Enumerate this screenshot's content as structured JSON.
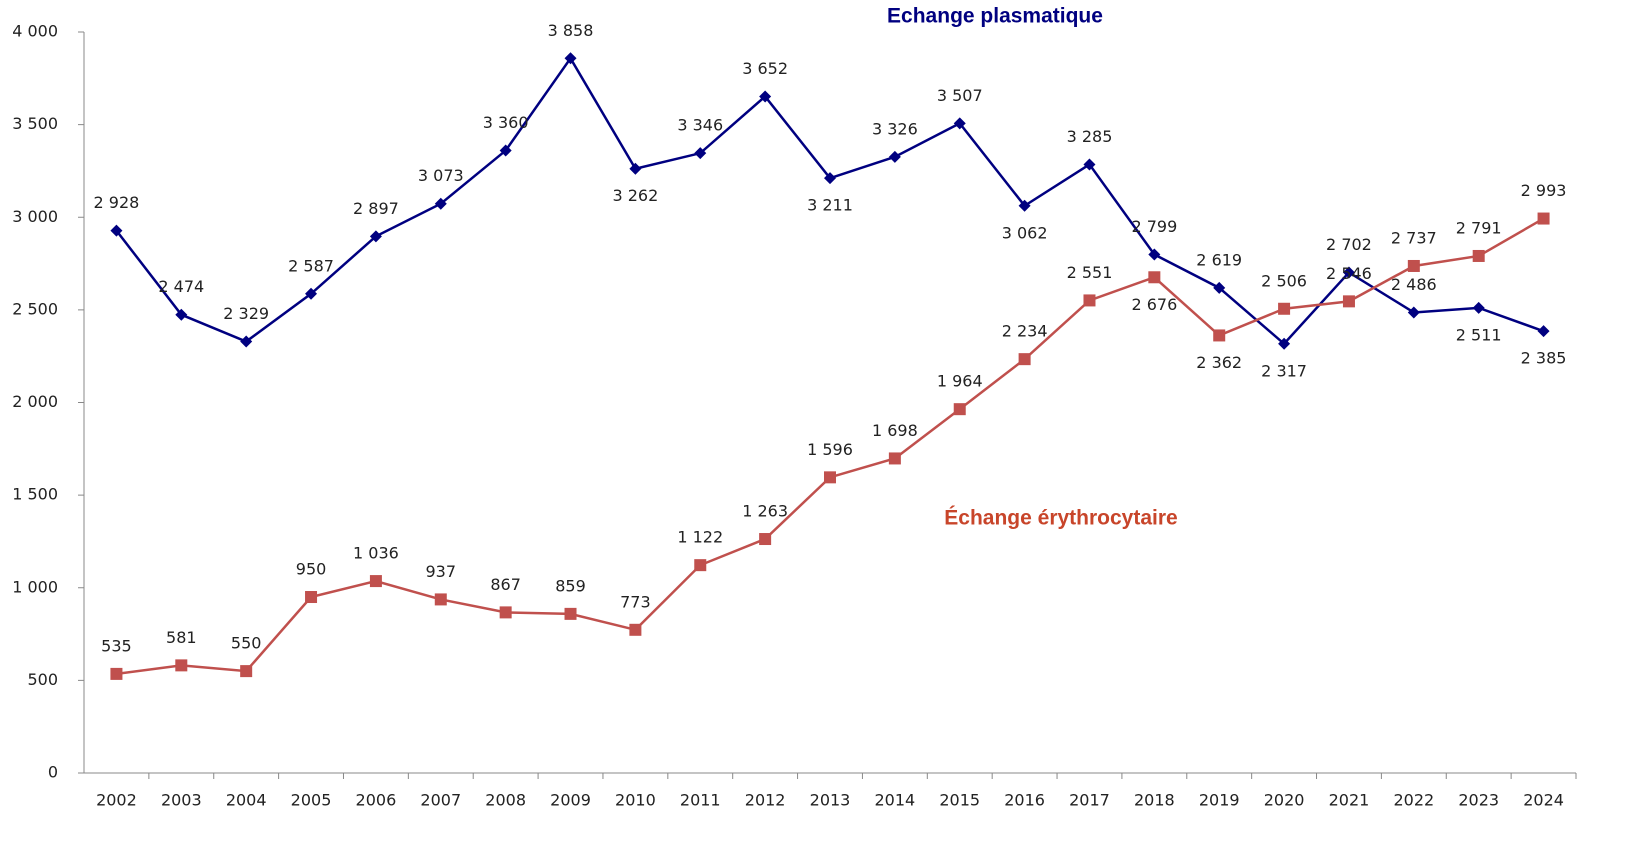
{
  "chart_data": {
    "type": "line",
    "categories": [
      "2002",
      "2003",
      "2004",
      "2005",
      "2006",
      "2007",
      "2008",
      "2009",
      "2010",
      "2011",
      "2012",
      "2013",
      "2014",
      "2015",
      "2016",
      "2017",
      "2018",
      "2019",
      "2020",
      "2021",
      "2022",
      "2023",
      "2024"
    ],
    "series": [
      {
        "name": "Echange plasmatique",
        "color": "#000080",
        "marker": "diamond",
        "values": [
          2928,
          2474,
          2329,
          2587,
          2897,
          3073,
          3360,
          3858,
          3262,
          3346,
          3652,
          3211,
          3326,
          3507,
          3062,
          3285,
          2799,
          2619,
          2317,
          2702,
          2486,
          2511,
          2385
        ],
        "value_labels": [
          "2 928",
          "2 474",
          "2 329",
          "2 587",
          "2 897",
          "3 073",
          "3 360",
          "3 858",
          "3 262",
          "3 346",
          "3 652",
          "3 211",
          "3 326",
          "3 507",
          "3 062",
          "3 285",
          "2 799",
          "2 619",
          "2 317",
          "2 702",
          "2 486",
          "2 511",
          "2 385"
        ]
      },
      {
        "name": "Échange érythrocytaire",
        "color": "#c0504d",
        "marker": "square",
        "values": [
          535,
          581,
          550,
          950,
          1036,
          937,
          867,
          859,
          773,
          1122,
          1263,
          1596,
          1698,
          1964,
          2234,
          2551,
          2676,
          2362,
          2506,
          2546,
          2737,
          2791,
          2993
        ],
        "value_labels": [
          "535",
          "581",
          "550",
          "950",
          "1 036",
          "937",
          "867",
          "859",
          "773",
          "1 122",
          "1 263",
          "1 596",
          "1 698",
          "1 964",
          "2 234",
          "2 551",
          "2 676",
          "2 362",
          "2 506",
          "2 546",
          "2 737",
          "2 791",
          "2 993"
        ]
      }
    ],
    "ylim": [
      0,
      4000
    ],
    "yticks": [
      0,
      500,
      {
        "value": 1000,
        "label": "1 000"
      },
      {
        "value": 1500,
        "label": "1 500"
      },
      {
        "value": 2000,
        "label": "2 000"
      },
      {
        "value": 2500,
        "label": "2 500"
      },
      {
        "value": 3000,
        "label": "3 000"
      },
      {
        "value": 3500,
        "label": "3 500"
      },
      {
        "value": 4000,
        "label": "4 000"
      }
    ],
    "grid": false
  }
}
